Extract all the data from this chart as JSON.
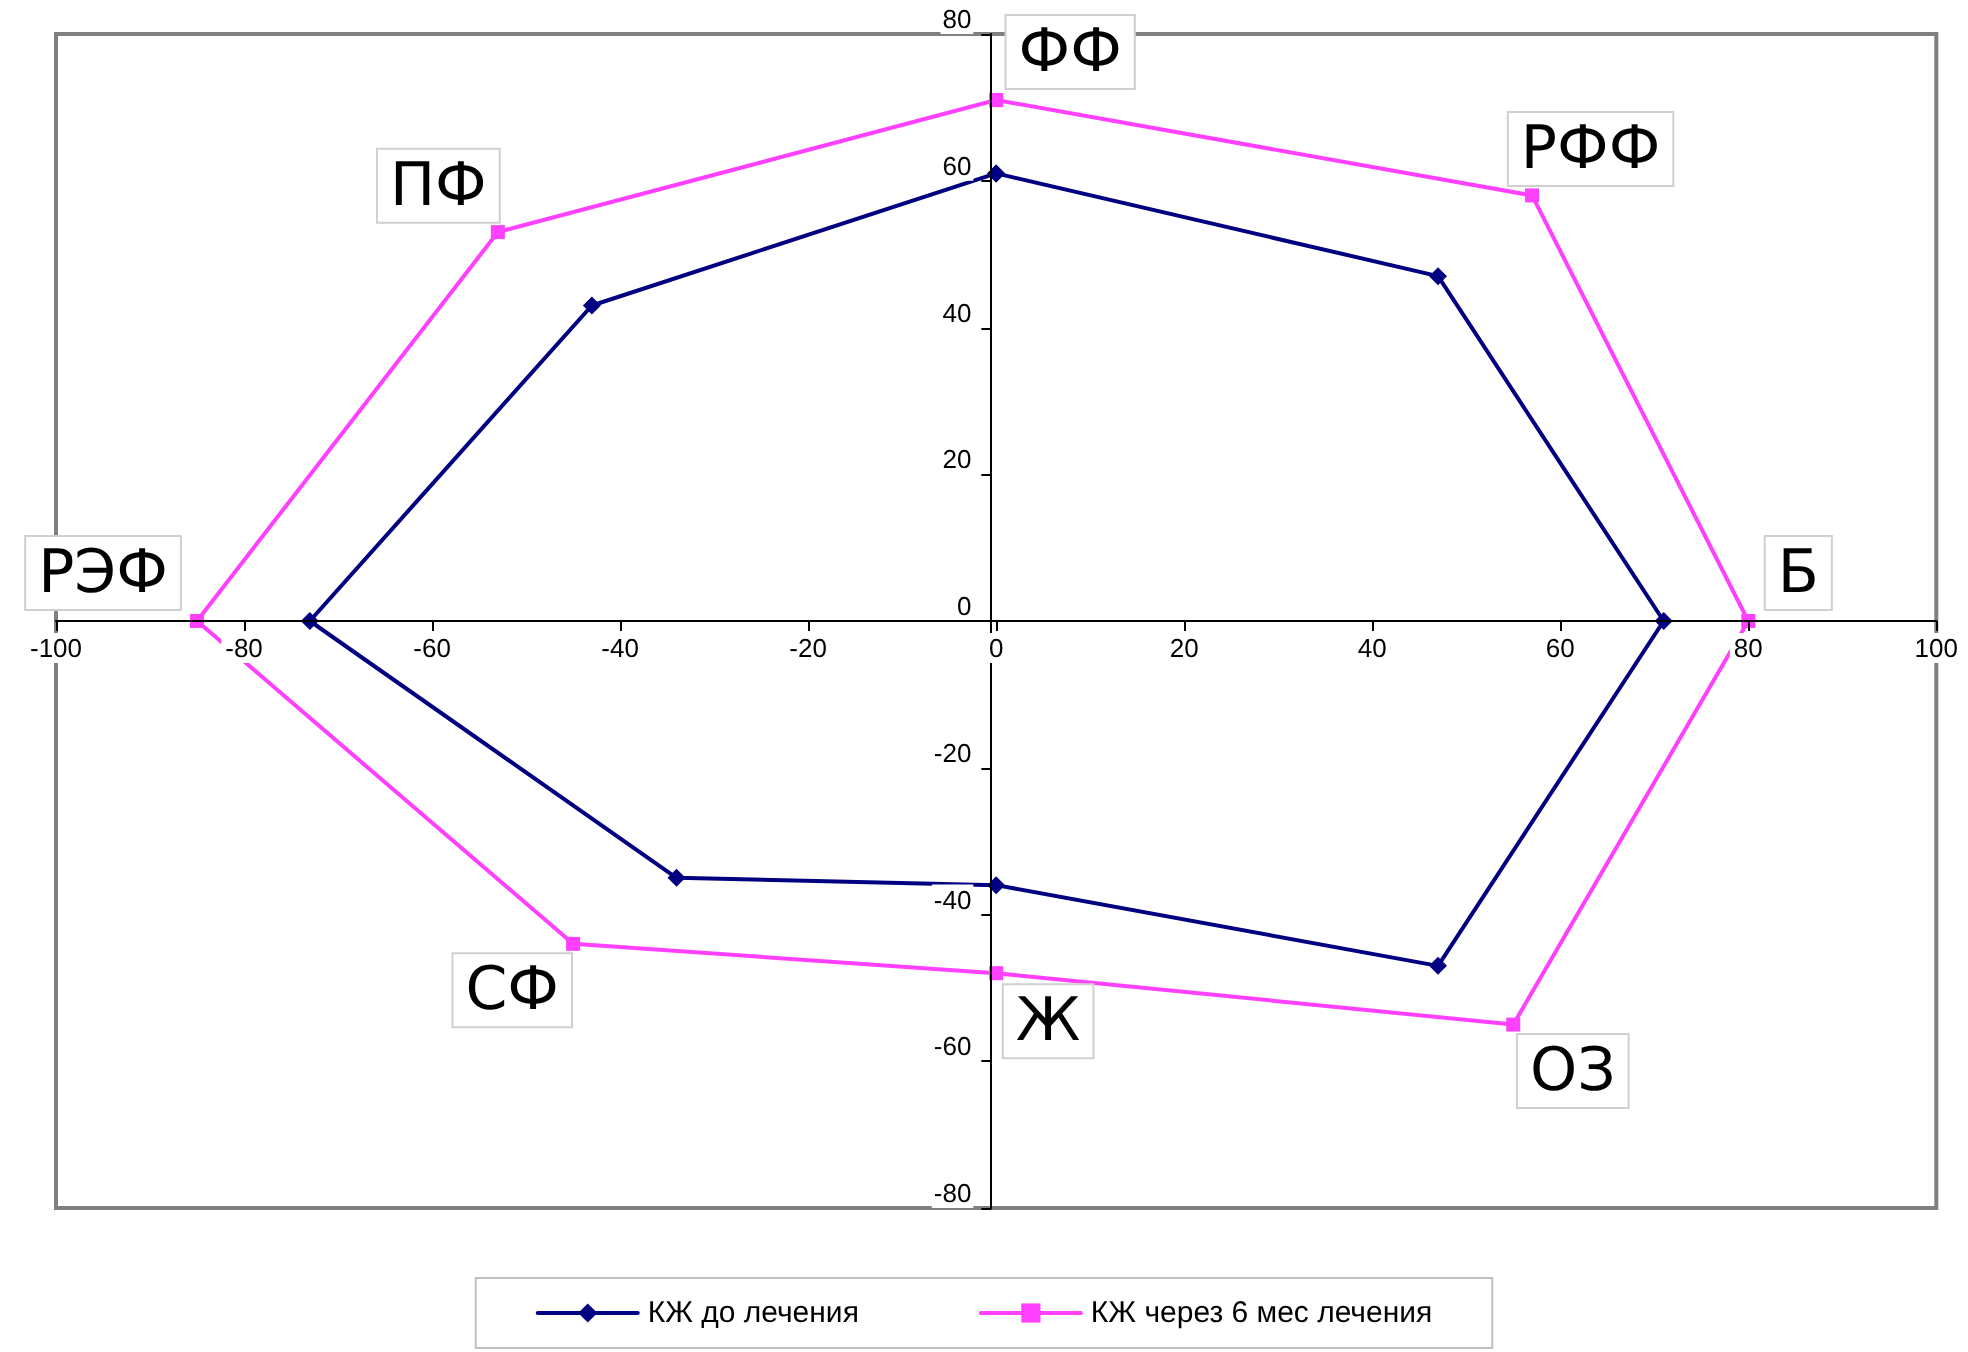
{
  "chart_data": {
    "type": "scatter",
    "xlim": [
      -100,
      100
    ],
    "ylim": [
      -80,
      80
    ],
    "xticks": [
      -100,
      -80,
      -60,
      -40,
      -20,
      0,
      20,
      40,
      60,
      80,
      100
    ],
    "yticks": [
      -80,
      -60,
      -40,
      -20,
      0,
      20,
      40,
      60,
      80
    ],
    "grid": false,
    "legend": "bottom",
    "series": [
      {
        "name": "КЖ до лечения",
        "color": "#000080",
        "marker": "diamond",
        "line_style": "solid",
        "x": [
          0,
          47,
          71,
          47,
          0,
          -34,
          -73,
          -43,
          0
        ],
        "values": [
          61,
          47,
          0,
          -47,
          -36,
          -35,
          0,
          43,
          61
        ]
      },
      {
        "name": "КЖ через 6 мес лечения",
        "color": "#ff40ff",
        "marker": "square",
        "line_style": "solid",
        "x": [
          0,
          57,
          80,
          55,
          0,
          -45,
          -85,
          -53,
          0
        ],
        "values": [
          71,
          58,
          0,
          -55,
          -48,
          -44,
          0,
          53,
          71
        ]
      }
    ],
    "annotations": [
      {
        "text": "ФФ",
        "x": 0,
        "y": 71
      },
      {
        "text": "РФФ",
        "x": 57,
        "y": 58
      },
      {
        "text": "Б",
        "x": 80,
        "y": 0
      },
      {
        "text": "ОЗ",
        "x": 55,
        "y": -55
      },
      {
        "text": "Ж",
        "x": 0,
        "y": -48
      },
      {
        "text": "СФ",
        "x": -45,
        "y": -44
      },
      {
        "text": "РЭФ",
        "x": -85,
        "y": 0
      },
      {
        "text": "ПФ",
        "x": -53,
        "y": 53
      }
    ]
  }
}
